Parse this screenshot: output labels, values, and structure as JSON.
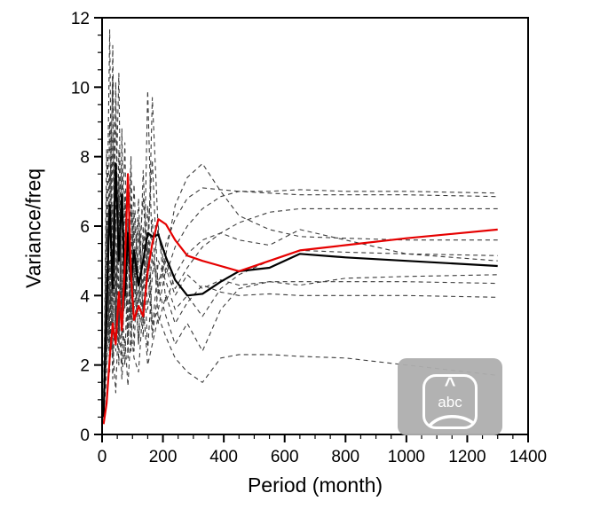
{
  "page": {
    "background": "#ffffff"
  },
  "chart_data": {
    "type": "line",
    "title": "",
    "xlabel": "Period (month)",
    "ylabel": "Variance/freq",
    "xlim": [
      0,
      1400
    ],
    "ylim": [
      0,
      12
    ],
    "xticks": [
      0,
      200,
      400,
      600,
      800,
      1000,
      1200,
      1400
    ],
    "yticks": [
      0,
      2,
      4,
      6,
      8,
      10,
      12
    ],
    "xtick_minor_step": 50,
    "ytick_minor_step": 0.5,
    "grid": false,
    "legend": "none",
    "x": [
      5,
      15,
      25,
      35,
      45,
      55,
      65,
      75,
      85,
      95,
      105,
      120,
      135,
      150,
      165,
      185,
      210,
      240,
      280,
      330,
      390,
      450,
      550,
      650,
      800,
      1000,
      1300
    ],
    "series": [
      {
        "name": "dashed-1",
        "style": "dashed",
        "color": "#3c3c3c",
        "width": 1.1,
        "values": [
          1.2,
          5.0,
          11.65,
          2.8,
          6.5,
          10.4,
          3.5,
          7.0,
          2.2,
          5.8,
          4.0,
          6.8,
          3.2,
          9.9,
          5.0,
          4.2,
          5.5,
          6.2,
          6.8,
          7.1,
          7.05,
          7.0,
          7.0,
          7.05,
          7.0,
          7.0,
          6.95
        ]
      },
      {
        "name": "dashed-2",
        "style": "dashed",
        "color": "#3c3c3c",
        "width": 1.1,
        "values": [
          0.6,
          8.2,
          3.0,
          11.2,
          4.5,
          2.0,
          8.8,
          3.6,
          6.2,
          2.8,
          5.2,
          3.4,
          7.6,
          4.4,
          9.7,
          5.8,
          4.6,
          5.4,
          6.0,
          6.5,
          6.85,
          7.0,
          6.95,
          6.9,
          6.9,
          6.9,
          6.85
        ]
      },
      {
        "name": "dashed-3",
        "style": "dashed",
        "color": "#3c3c3c",
        "width": 1.1,
        "values": [
          2.0,
          4.2,
          7.5,
          2.2,
          10.15,
          3.8,
          5.6,
          8.4,
          3.0,
          6.6,
          4.8,
          2.6,
          6.0,
          3.6,
          5.2,
          4.4,
          5.0,
          4.2,
          4.8,
          5.4,
          5.8,
          6.1,
          6.4,
          6.5,
          6.5,
          6.5,
          6.5
        ]
      },
      {
        "name": "dashed-4",
        "style": "dashed",
        "color": "#3c3c3c",
        "width": 1.1,
        "values": [
          0.9,
          6.0,
          2.4,
          8.6,
          3.2,
          6.8,
          2.0,
          5.0,
          7.4,
          3.4,
          6.4,
          4.6,
          2.8,
          5.6,
          7.9,
          4.0,
          5.2,
          6.6,
          7.4,
          7.8,
          7.0,
          6.3,
          5.9,
          5.7,
          5.65,
          5.6,
          5.6
        ]
      },
      {
        "name": "dashed-5",
        "style": "dashed",
        "color": "#3c3c3c",
        "width": 1.1,
        "values": [
          1.5,
          3.4,
          9.0,
          4.0,
          6.2,
          2.6,
          7.8,
          3.8,
          5.4,
          8.0,
          2.4,
          5.8,
          4.2,
          6.6,
          3.0,
          5.0,
          4.4,
          3.6,
          4.0,
          3.4,
          4.2,
          4.6,
          5.0,
          5.3,
          5.25,
          5.2,
          5.15
        ]
      },
      {
        "name": "dashed-6",
        "style": "dashed",
        "color": "#3c3c3c",
        "width": 1.1,
        "values": [
          0.5,
          7.0,
          2.0,
          5.4,
          9.6,
          3.0,
          4.8,
          6.8,
          2.6,
          4.4,
          7.2,
          3.8,
          5.6,
          2.4,
          4.6,
          6.0,
          3.8,
          4.6,
          5.2,
          5.6,
          5.8,
          5.6,
          5.45,
          5.9,
          5.6,
          5.2,
          5.0
        ]
      },
      {
        "name": "dashed-7",
        "style": "dashed",
        "color": "#3c3c3c",
        "width": 1.1,
        "values": [
          1.8,
          2.6,
          6.4,
          10.3,
          2.8,
          7.4,
          3.4,
          5.8,
          2.2,
          7.6,
          3.6,
          5.0,
          6.8,
          4.8,
          2.8,
          4.2,
          3.4,
          2.6,
          3.2,
          2.4,
          3.6,
          4.2,
          4.4,
          4.3,
          4.5,
          4.55,
          4.6
        ]
      },
      {
        "name": "dashed-8",
        "style": "dashed",
        "color": "#3c3c3c",
        "width": 1.1,
        "values": [
          0.7,
          4.6,
          1.8,
          6.6,
          2.4,
          8.2,
          4.2,
          2.0,
          5.2,
          3.2,
          6.0,
          2.6,
          4.4,
          5.4,
          3.2,
          3.6,
          4.8,
          4.0,
          4.6,
          4.2,
          4.45,
          4.3,
          4.4,
          4.4,
          4.4,
          4.4,
          4.35
        ]
      },
      {
        "name": "dashed-9",
        "style": "dashed",
        "color": "#3c3c3c",
        "width": 1.1,
        "values": [
          1.0,
          2.2,
          5.0,
          1.6,
          4.2,
          6.4,
          2.8,
          4.0,
          6.0,
          2.4,
          4.6,
          6.2,
          3.4,
          4.8,
          6.2,
          3.2,
          4.0,
          3.2,
          3.8,
          4.3,
          4.1,
          4.0,
          4.05,
          4.0,
          4.0,
          4.0,
          3.95
        ]
      },
      {
        "name": "dashed-10",
        "style": "dashed",
        "color": "#3c3c3c",
        "width": 1.1,
        "values": [
          0.4,
          1.8,
          4.4,
          2.6,
          1.2,
          3.6,
          1.6,
          2.8,
          1.4,
          3.0,
          2.2,
          1.8,
          3.8,
          2.0,
          2.6,
          3.4,
          2.8,
          2.2,
          1.8,
          1.5,
          2.2,
          2.3,
          2.3,
          2.25,
          2.2,
          2.0,
          1.7
        ]
      },
      {
        "name": "solid-black",
        "style": "solid",
        "color": "#000000",
        "width": 2.2,
        "values": [
          0.5,
          3.6,
          6.6,
          4.2,
          7.8,
          5.0,
          6.9,
          4.0,
          5.8,
          4.4,
          5.3,
          4.3,
          5.0,
          5.8,
          5.7,
          5.75,
          5.1,
          4.45,
          4.0,
          4.05,
          4.4,
          4.7,
          4.8,
          5.2,
          5.1,
          5.0,
          4.85
        ]
      },
      {
        "name": "solid-red",
        "style": "solid",
        "color": "#e60000",
        "width": 2.2,
        "values": [
          0.3,
          0.9,
          2.2,
          3.2,
          2.6,
          4.1,
          3.0,
          4.9,
          7.5,
          4.6,
          3.3,
          3.7,
          3.4,
          4.7,
          5.5,
          6.2,
          6.05,
          5.6,
          5.15,
          5.0,
          4.85,
          4.7,
          5.0,
          5.3,
          5.45,
          5.65,
          5.9
        ]
      }
    ]
  },
  "overlay": {
    "caret": "^",
    "icon_label": "abc"
  }
}
